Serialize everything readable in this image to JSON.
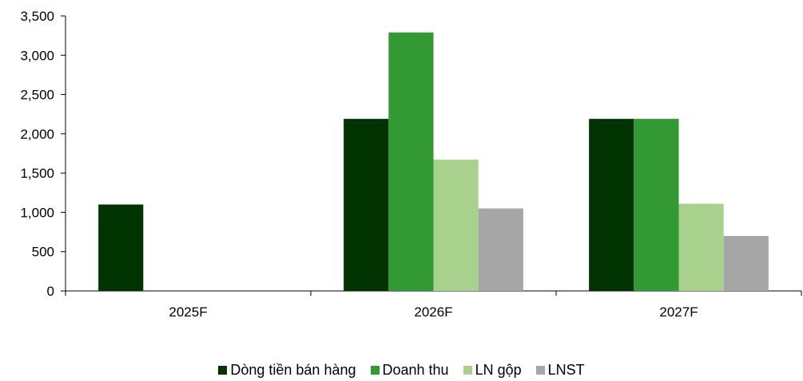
{
  "chart_data": {
    "type": "bar",
    "categories": [
      "2025F",
      "2026F",
      "2027F"
    ],
    "series": [
      {
        "name": "Dòng tiền bán hàng",
        "color": "#003300",
        "values": [
          1100,
          2190,
          2190
        ]
      },
      {
        "name": "Doanh thu",
        "color": "#339933",
        "values": [
          null,
          3290,
          2190
        ]
      },
      {
        "name": "LN gộp",
        "color": "#a9d18e",
        "values": [
          null,
          1670,
          1110
        ]
      },
      {
        "name": "LNST",
        "color": "#a6a6a6",
        "values": [
          null,
          1050,
          700
        ]
      }
    ],
    "ylim": [
      0,
      3500
    ],
    "yticks": [
      0,
      500,
      1000,
      1500,
      2000,
      2500,
      3000,
      3500
    ],
    "ytick_labels": [
      "0",
      "500",
      "1,000",
      "1,500",
      "2,000",
      "2,500",
      "3,000",
      "3,500"
    ],
    "title": "",
    "xlabel": "",
    "ylabel": "",
    "grid": false,
    "legend_position": "bottom-center"
  }
}
